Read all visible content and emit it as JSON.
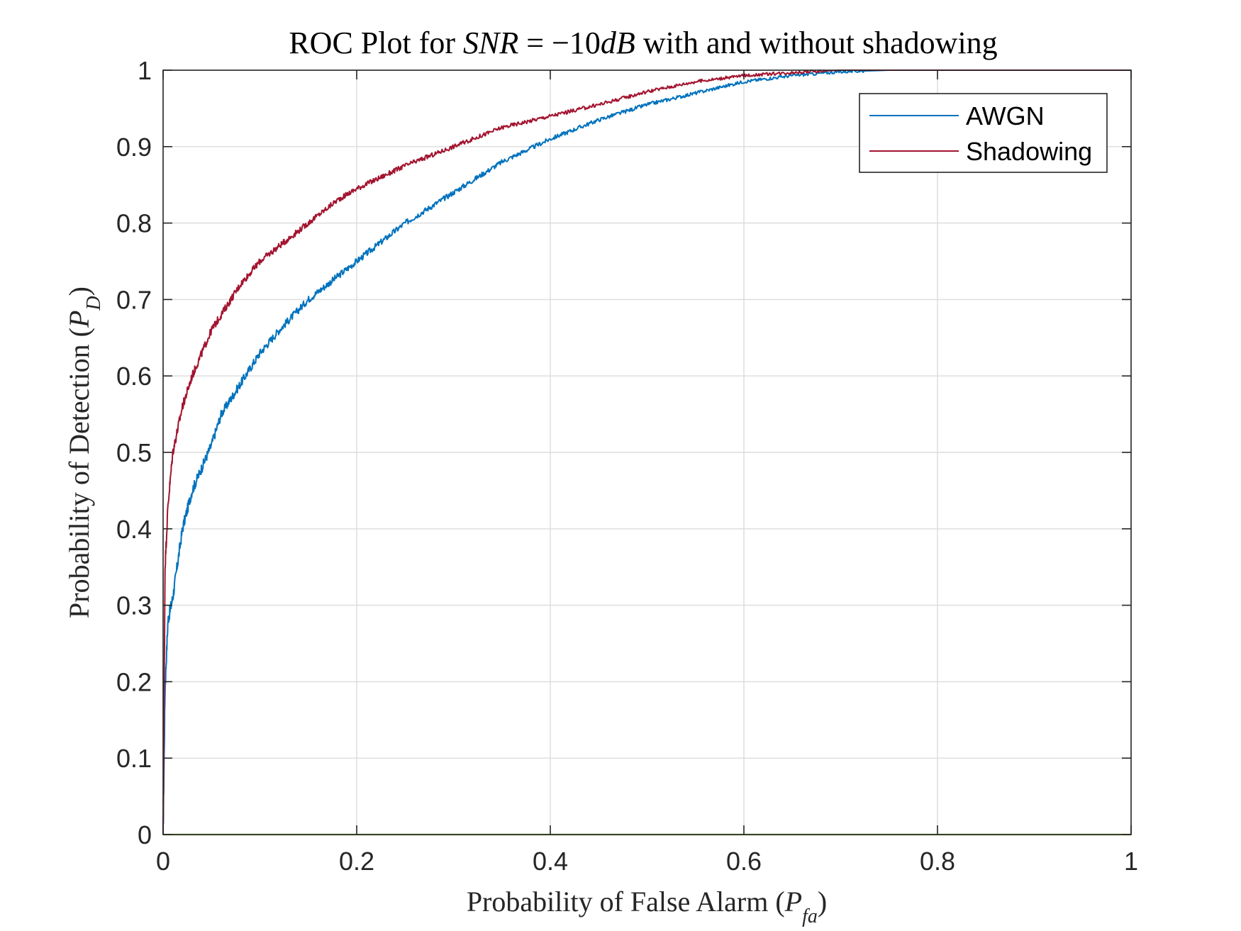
{
  "chart_data": {
    "type": "line",
    "title": "ROC Plot for SNR = −10dB with and without shadowing",
    "xlabel": "Probability of False Alarm (Pfa)",
    "ylabel": "Probability of Detection (PD)",
    "xlim": [
      0,
      1
    ],
    "ylim": [
      0,
      1
    ],
    "xticks": [
      "0",
      "0.2",
      "0.4",
      "0.6",
      "0.8",
      "1"
    ],
    "yticks": [
      "0",
      "0.1",
      "0.2",
      "0.3",
      "0.4",
      "0.5",
      "0.6",
      "0.7",
      "0.8",
      "0.9",
      "1"
    ],
    "grid": true,
    "legend_position": "top-right",
    "series": [
      {
        "name": "AWGN",
        "color": "#0072BD",
        "x": [
          0,
          0.002,
          0.005,
          0.01,
          0.02,
          0.03,
          0.04,
          0.05,
          0.06,
          0.08,
          0.1,
          0.12,
          0.15,
          0.18,
          0.2,
          0.25,
          0.3,
          0.35,
          0.4,
          0.45,
          0.5,
          0.55,
          0.6,
          0.65,
          0.7,
          0.75,
          0.8,
          0.9,
          1.0
        ],
        "y": [
          0,
          0.19,
          0.28,
          0.31,
          0.4,
          0.45,
          0.48,
          0.51,
          0.55,
          0.59,
          0.63,
          0.66,
          0.7,
          0.73,
          0.75,
          0.8,
          0.84,
          0.88,
          0.91,
          0.935,
          0.955,
          0.97,
          0.985,
          0.993,
          0.998,
          1.0,
          1.0,
          1.0,
          1.0
        ]
      },
      {
        "name": "Shadowing",
        "color": "#A2142F",
        "x": [
          0,
          0.002,
          0.005,
          0.01,
          0.015,
          0.02,
          0.03,
          0.04,
          0.05,
          0.06,
          0.08,
          0.1,
          0.12,
          0.15,
          0.18,
          0.2,
          0.25,
          0.3,
          0.35,
          0.4,
          0.45,
          0.5,
          0.55,
          0.6,
          0.65,
          0.7,
          0.75,
          0.8,
          0.9,
          1.0
        ],
        "y": [
          0,
          0.35,
          0.43,
          0.5,
          0.53,
          0.56,
          0.6,
          0.63,
          0.66,
          0.68,
          0.72,
          0.75,
          0.77,
          0.8,
          0.83,
          0.845,
          0.875,
          0.9,
          0.925,
          0.94,
          0.955,
          0.972,
          0.985,
          0.993,
          0.997,
          1.0,
          1.0,
          1.0,
          1.0,
          1.0
        ]
      }
    ],
    "baseline": {
      "name": "",
      "color": "#77AC30",
      "x": [
        0,
        1
      ],
      "y": [
        0,
        0
      ]
    }
  }
}
